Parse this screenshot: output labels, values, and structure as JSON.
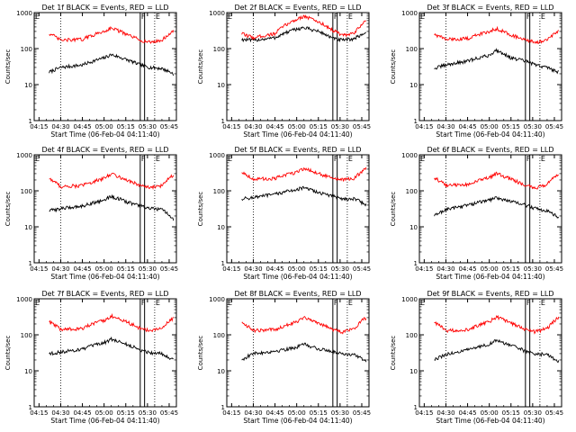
{
  "figure": {
    "xtick_labels": [
      "04:15",
      "04:30",
      "04:45",
      "05:00",
      "05:15",
      "05:30",
      "05:45"
    ],
    "ytick_labels": [
      "1",
      "10",
      "100",
      "1000"
    ],
    "xlabel": "Start Time (06-Feb-04 04:11:40)",
    "ylabel": "Counts/sec",
    "marker_labels": {
      "left_e": "E",
      "f": "F",
      "right_e": "E"
    },
    "colors": {
      "events": "#000000",
      "lld": "#ff0000",
      "axes": "#000000",
      "background": "#ffffff"
    }
  },
  "chart_data": [
    {
      "type": "line",
      "title": "Det 1f BLACK = Events, RED = LLD",
      "xlabel": "Start Time (06-Feb-04 04:11:40)",
      "ylabel": "Counts/sec",
      "y_scale": "log",
      "ylim": [
        1,
        1000
      ],
      "xlim": [
        "04:11:40",
        "05:50:00"
      ],
      "x": [
        "04:22",
        "04:30",
        "04:45",
        "05:00",
        "05:05",
        "05:15",
        "05:25",
        "05:32",
        "05:40",
        "05:48"
      ],
      "series": [
        {
          "name": "Events",
          "color": "#000000",
          "values": [
            22,
            30,
            35,
            55,
            68,
            50,
            35,
            30,
            28,
            20
          ]
        },
        {
          "name": "LLD",
          "color": "#ff0000",
          "values": [
            260,
            170,
            180,
            300,
            380,
            250,
            170,
            150,
            170,
            300
          ]
        }
      ],
      "vlines_dotted": [
        "04:30",
        "05:35"
      ],
      "vlines_solid": [
        "05:25",
        "05:28"
      ]
    },
    {
      "type": "line",
      "title": "Det 2f BLACK = Events, RED = LLD",
      "xlabel": "Start Time (06-Feb-04 04:11:40)",
      "ylabel": "Counts/sec",
      "y_scale": "log",
      "ylim": [
        1,
        1000
      ],
      "xlim": [
        "04:11:40",
        "05:50:00"
      ],
      "x": [
        "04:22",
        "04:30",
        "04:45",
        "05:00",
        "05:05",
        "05:15",
        "05:25",
        "05:32",
        "05:40",
        "05:48"
      ],
      "series": [
        {
          "name": "Events",
          "color": "#000000",
          "values": [
            180,
            170,
            200,
            350,
            380,
            300,
            190,
            170,
            190,
            280
          ]
        },
        {
          "name": "LLD",
          "color": "#ff0000",
          "values": [
            260,
            200,
            260,
            650,
            800,
            550,
            320,
            230,
            260,
            600
          ]
        }
      ],
      "vlines_dotted": [
        "04:30",
        "05:35"
      ],
      "vlines_solid": [
        "05:25",
        "05:28"
      ]
    },
    {
      "type": "line",
      "title": "Det 3f BLACK = Events, RED = LLD",
      "xlabel": "Start Time (06-Feb-04 04:11:40)",
      "ylabel": "Counts/sec",
      "y_scale": "log",
      "ylim": [
        1,
        1000
      ],
      "xlim": [
        "04:11:40",
        "05:50:00"
      ],
      "x": [
        "04:22",
        "04:30",
        "04:45",
        "05:00",
        "05:05",
        "05:15",
        "05:25",
        "05:32",
        "05:40",
        "05:48"
      ],
      "series": [
        {
          "name": "Events",
          "color": "#000000",
          "values": [
            28,
            35,
            45,
            65,
            90,
            55,
            45,
            35,
            30,
            22
          ]
        },
        {
          "name": "LLD",
          "color": "#ff0000",
          "values": [
            250,
            180,
            190,
            300,
            360,
            240,
            170,
            150,
            170,
            300
          ]
        }
      ],
      "vlines_dotted": [
        "04:30",
        "05:35"
      ],
      "vlines_solid": [
        "05:25",
        "05:28"
      ]
    },
    {
      "type": "line",
      "title": "Det 4f BLACK = Events, RED = LLD",
      "xlabel": "Start Time (06-Feb-04 04:11:40)",
      "ylabel": "Counts/sec",
      "y_scale": "log",
      "ylim": [
        1,
        1000
      ],
      "xlim": [
        "04:11:40",
        "05:50:00"
      ],
      "x": [
        "04:22",
        "04:30",
        "04:45",
        "05:00",
        "05:05",
        "05:15",
        "05:25",
        "05:32",
        "05:40",
        "05:48"
      ],
      "series": [
        {
          "name": "Events",
          "color": "#000000",
          "values": [
            28,
            32,
            38,
            55,
            70,
            50,
            38,
            32,
            30,
            15
          ]
        },
        {
          "name": "LLD",
          "color": "#ff0000",
          "values": [
            220,
            130,
            140,
            220,
            300,
            200,
            140,
            120,
            140,
            280
          ]
        }
      ],
      "vlines_dotted": [
        "04:30",
        "05:35"
      ],
      "vlines_solid": [
        "05:25",
        "05:28"
      ]
    },
    {
      "type": "line",
      "title": "Det 5f BLACK = Events, RED = LLD",
      "xlabel": "Start Time (06-Feb-04 04:11:40)",
      "ylabel": "Counts/sec",
      "y_scale": "log",
      "ylim": [
        1,
        1000
      ],
      "xlim": [
        "04:11:40",
        "05:50:00"
      ],
      "x": [
        "04:22",
        "04:30",
        "04:45",
        "05:00",
        "05:05",
        "05:15",
        "05:25",
        "05:32",
        "05:40",
        "05:48"
      ],
      "series": [
        {
          "name": "Events",
          "color": "#000000",
          "values": [
            60,
            65,
            80,
            110,
            120,
            90,
            70,
            60,
            60,
            40
          ]
        },
        {
          "name": "LLD",
          "color": "#ff0000",
          "values": [
            330,
            210,
            220,
            330,
            420,
            300,
            220,
            200,
            220,
            420
          ]
        }
      ],
      "vlines_dotted": [
        "04:30",
        "05:35"
      ],
      "vlines_solid": [
        "05:25",
        "05:28"
      ]
    },
    {
      "type": "line",
      "title": "Det 6f BLACK = Events, RED = LLD",
      "xlabel": "Start Time (06-Feb-04 04:11:40)",
      "ylabel": "Counts/sec",
      "y_scale": "log",
      "ylim": [
        1,
        1000
      ],
      "xlim": [
        "04:11:40",
        "05:50:00"
      ],
      "x": [
        "04:22",
        "04:30",
        "04:45",
        "05:00",
        "05:05",
        "05:15",
        "05:25",
        "05:32",
        "05:40",
        "05:48"
      ],
      "series": [
        {
          "name": "Events",
          "color": "#000000",
          "values": [
            20,
            30,
            40,
            55,
            65,
            50,
            40,
            32,
            28,
            18
          ]
        },
        {
          "name": "LLD",
          "color": "#ff0000",
          "values": [
            230,
            140,
            150,
            230,
            300,
            210,
            140,
            120,
            150,
            280
          ]
        }
      ],
      "vlines_dotted": [
        "04:30",
        "05:35"
      ],
      "vlines_solid": [
        "05:25",
        "05:28"
      ]
    },
    {
      "type": "line",
      "title": "Det 7f BLACK = Events, RED = LLD",
      "xlabel": "Start Time (06-Feb-04 04:11:40)",
      "ylabel": "Counts/sec",
      "y_scale": "log",
      "ylim": [
        1,
        1000
      ],
      "xlim": [
        "04:11:40",
        "05:50:00"
      ],
      "x": [
        "04:22",
        "04:30",
        "04:45",
        "05:00",
        "05:05",
        "05:15",
        "05:25",
        "05:32",
        "05:40",
        "05:48"
      ],
      "series": [
        {
          "name": "Events",
          "color": "#000000",
          "values": [
            30,
            33,
            40,
            60,
            75,
            55,
            38,
            32,
            30,
            20
          ]
        },
        {
          "name": "LLD",
          "color": "#ff0000",
          "values": [
            230,
            140,
            150,
            250,
            330,
            230,
            150,
            130,
            150,
            290
          ]
        }
      ],
      "vlines_dotted": [
        "04:30",
        "05:35"
      ],
      "vlines_solid": [
        "05:25",
        "05:28"
      ]
    },
    {
      "type": "line",
      "title": "Det 8f BLACK = Events, RED = LLD",
      "xlabel": "Start Time (06-Feb-04 04:11:40)",
      "ylabel": "Counts/sec",
      "y_scale": "log",
      "ylim": [
        1,
        1000
      ],
      "xlim": [
        "04:11:40",
        "05:50:00"
      ],
      "x": [
        "04:22",
        "04:30",
        "04:45",
        "05:00",
        "05:05",
        "05:15",
        "05:25",
        "05:32",
        "05:40",
        "05:48"
      ],
      "series": [
        {
          "name": "Events",
          "color": "#000000",
          "values": [
            20,
            30,
            35,
            45,
            55,
            40,
            35,
            30,
            28,
            18
          ]
        },
        {
          "name": "LLD",
          "color": "#ff0000",
          "values": [
            220,
            130,
            140,
            230,
            310,
            210,
            140,
            120,
            150,
            300
          ]
        }
      ],
      "vlines_dotted": [
        "04:30",
        "05:35"
      ],
      "vlines_solid": [
        "05:25",
        "05:28"
      ]
    },
    {
      "type": "line",
      "title": "Det 9f BLACK = Events, RED = LLD",
      "xlabel": "Start Time (06-Feb-04 04:11:40)",
      "ylabel": "Counts/sec",
      "y_scale": "log",
      "ylim": [
        1,
        1000
      ],
      "xlim": [
        "04:11:40",
        "05:50:00"
      ],
      "x": [
        "04:22",
        "04:30",
        "04:45",
        "05:00",
        "05:05",
        "05:15",
        "05:25",
        "05:32",
        "05:40",
        "05:48"
      ],
      "series": [
        {
          "name": "Events",
          "color": "#000000",
          "values": [
            20,
            28,
            38,
            55,
            70,
            50,
            35,
            30,
            28,
            18
          ]
        },
        {
          "name": "LLD",
          "color": "#ff0000",
          "values": [
            220,
            130,
            140,
            230,
            310,
            210,
            140,
            120,
            150,
            300
          ]
        }
      ],
      "vlines_dotted": [
        "04:30",
        "05:35"
      ],
      "vlines_solid": [
        "05:25",
        "05:28"
      ]
    }
  ]
}
